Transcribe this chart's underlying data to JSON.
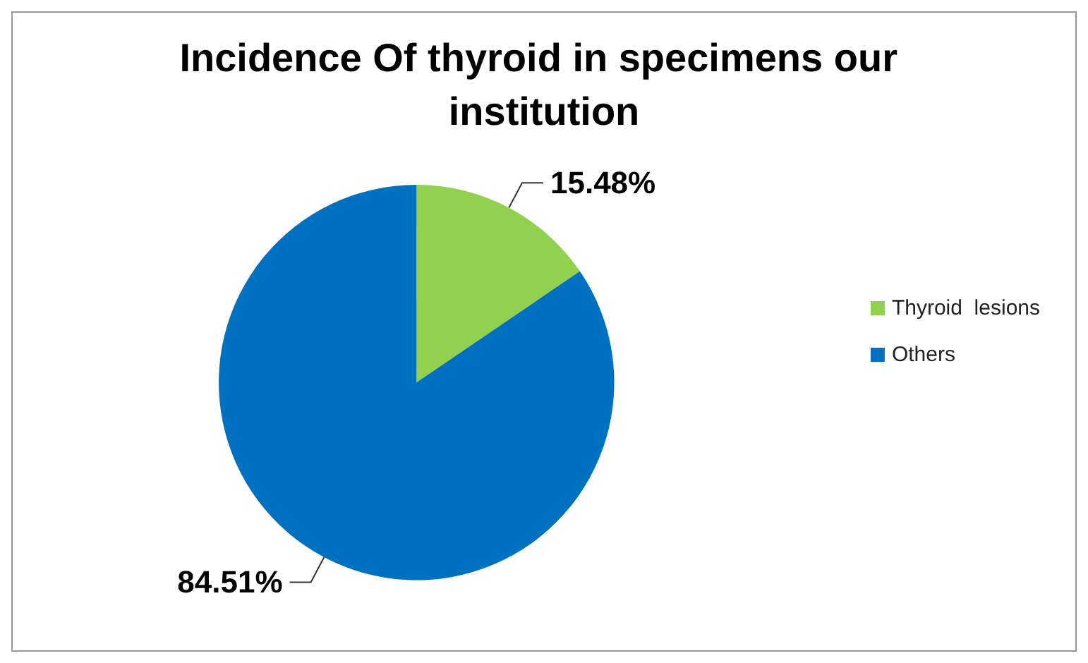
{
  "chart_data": {
    "type": "pie",
    "title": "Incidence Of thyroid in specimens our institution",
    "categories": [
      "Thyroid  lesions",
      "Others"
    ],
    "values": [
      15.48,
      84.51
    ],
    "colors": [
      "#92d050",
      "#0070c0"
    ],
    "value_labels": [
      "15.48%",
      "84.51%"
    ],
    "legend": "right"
  }
}
